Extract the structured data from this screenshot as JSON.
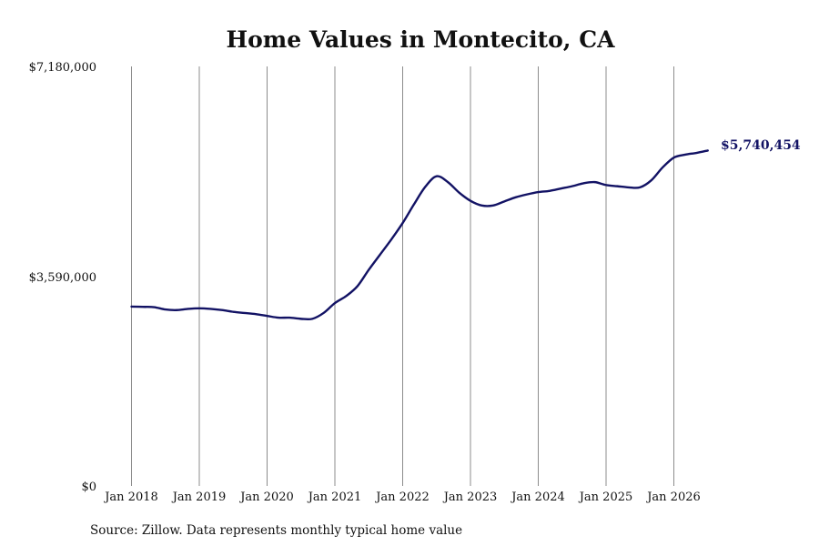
{
  "chart_data": {
    "type": "line",
    "title": "Home Values in Montecito, CA",
    "xlabel": "",
    "ylabel": "",
    "x_tick_labels": [
      "Jan 2018",
      "Jan 2019",
      "Jan 2020",
      "Jan 2021",
      "Jan 2022",
      "Jan 2023",
      "Jan 2024",
      "Jan 2025",
      "Jan 2026"
    ],
    "y_tick_labels": [
      "$0",
      "$3,590,000",
      "$7,180,000"
    ],
    "ylim": [
      0,
      7180000
    ],
    "x_range": [
      "2018-01",
      "2026-07"
    ],
    "grid": "vertical lines at January of each year",
    "line_color": "#121264",
    "end_label": "$5,740,454",
    "series": [
      {
        "x": [
          "2018-01",
          "2018-03",
          "2018-05",
          "2018-07",
          "2018-09",
          "2018-11",
          "2019-01",
          "2019-03",
          "2019-05",
          "2019-07",
          "2019-09",
          "2019-11",
          "2020-01",
          "2020-03",
          "2020-05",
          "2020-07",
          "2020-09",
          "2020-11",
          "2021-01",
          "2021-03",
          "2021-05",
          "2021-07",
          "2021-09",
          "2021-11",
          "2022-01",
          "2022-03",
          "2022-05",
          "2022-07",
          "2022-09",
          "2022-11",
          "2023-01",
          "2023-03",
          "2023-05",
          "2023-07",
          "2023-09",
          "2023-11",
          "2024-01",
          "2024-03",
          "2024-05",
          "2024-07",
          "2024-09",
          "2024-11",
          "2025-01",
          "2025-03",
          "2025-05",
          "2025-07",
          "2025-09",
          "2025-11",
          "2026-01",
          "2026-03",
          "2026-05",
          "2026-07"
        ],
        "values": [
          3070000,
          3065000,
          3060000,
          3020000,
          3010000,
          3030000,
          3040000,
          3030000,
          3010000,
          2980000,
          2960000,
          2940000,
          2910000,
          2880000,
          2880000,
          2860000,
          2860000,
          2960000,
          3130000,
          3250000,
          3420000,
          3700000,
          3960000,
          4220000,
          4500000,
          4820000,
          5120000,
          5300000,
          5200000,
          5020000,
          4880000,
          4800000,
          4800000,
          4870000,
          4940000,
          4990000,
          5030000,
          5050000,
          5090000,
          5130000,
          5180000,
          5200000,
          5150000,
          5130000,
          5110000,
          5110000,
          5230000,
          5450000,
          5620000,
          5670000,
          5700000,
          5740454
        ]
      }
    ]
  },
  "source": "Source: Zillow. Data represents monthly typical home value"
}
